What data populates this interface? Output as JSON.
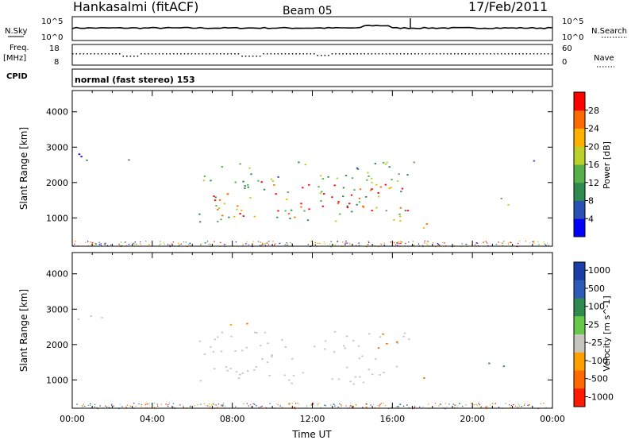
{
  "header": {
    "station": "Hankasalmi (fitACF)",
    "beam": "Beam 05",
    "date": "17/Feb/2011"
  },
  "top_strip": {
    "left_label": "N.Sky",
    "right_label": "N.Search",
    "left_ticks": [
      "10^5",
      "10^0"
    ],
    "right_ticks": [
      "10^5",
      "10^0"
    ]
  },
  "freq_strip": {
    "left_label": "Freq.",
    "left_unit": "[MHz]",
    "right_label": "Nave",
    "left_ticks": [
      "18",
      "8"
    ],
    "right_ticks": [
      "60",
      "0"
    ]
  },
  "cpid": {
    "label": "CPID",
    "value": "normal (fast stereo) 153"
  },
  "colors": {
    "power_scale": [
      "#0000ff",
      "#2a4fb5",
      "#2f8a4f",
      "#58b04b",
      "#bbd12a",
      "#ffb000",
      "#ff6a00",
      "#ff0000"
    ],
    "velocity_scale": [
      "#1b3fa6",
      "#2e5ab8",
      "#2f8a4f",
      "#66c94a",
      "#c6c6be",
      "#ffa000",
      "#ff6a00",
      "#ff1a00"
    ],
    "ground_scatter": "#c6c6be"
  },
  "chart_data": [
    {
      "type": "heatmap",
      "name": "power",
      "ylabel": "Slant Range [km]",
      "yticks": [
        1000,
        2000,
        3000,
        4000
      ],
      "ylim": [
        200,
        4600
      ],
      "xticks": [
        "00:00",
        "04:00",
        "08:00",
        "12:00",
        "16:00",
        "20:00",
        "00:00"
      ],
      "xlim_hours": [
        0,
        24
      ],
      "colorbar": {
        "label": "Power [dB]",
        "ticks": [
          "4",
          "8",
          "12",
          "16",
          "20",
          "24",
          "28"
        ],
        "range": [
          0,
          30
        ]
      },
      "regions": [
        {
          "t0": 6.3,
          "t1": 17.2,
          "r0": 900,
          "r1": 2600,
          "dB": 12
        },
        {
          "t0": 6.8,
          "t1": 16.8,
          "r0": 1000,
          "r1": 2100,
          "dB": 26
        },
        {
          "t0": 0.0,
          "t1": 1.5,
          "r0": 2600,
          "r1": 3100,
          "dB": 6
        },
        {
          "t0": 2.0,
          "t1": 3.3,
          "r0": 2600,
          "r1": 2700,
          "dB": 8
        },
        {
          "t0": 16.5,
          "t1": 18.0,
          "r0": 700,
          "r1": 1000,
          "dB": 20
        },
        {
          "t0": 20.3,
          "t1": 21.8,
          "r0": 1300,
          "r1": 1600,
          "dB": 12
        },
        {
          "t0": 23.0,
          "t1": 24.0,
          "r0": 2600,
          "r1": 2900,
          "dB": 6
        }
      ]
    },
    {
      "type": "heatmap",
      "name": "velocity",
      "ylabel": "Slant Range [km]",
      "yticks": [
        1000,
        2000,
        3000,
        4000
      ],
      "ylim": [
        200,
        4600
      ],
      "xticks": [
        "00:00",
        "04:00",
        "08:00",
        "12:00",
        "16:00",
        "20:00",
        "00:00"
      ],
      "xlim_hours": [
        0,
        24
      ],
      "xlabel": "Time UT",
      "colorbar": {
        "label": "Velocity [m s^-1]",
        "ticks": [
          "1000",
          "500",
          "100",
          "25",
          "-25",
          "-100",
          "-500",
          "-1000"
        ]
      },
      "regions": [
        {
          "t0": 6.2,
          "t1": 17.0,
          "r0": 900,
          "r1": 2400,
          "v": 0
        },
        {
          "t0": 7.0,
          "t1": 8.8,
          "r0": 2500,
          "r1": 2800,
          "v": -100
        },
        {
          "t0": 14.8,
          "t1": 16.5,
          "r0": 1900,
          "r1": 2400,
          "v": -300
        },
        {
          "t0": 16.3,
          "t1": 17.8,
          "r0": 1000,
          "r1": 1200,
          "v": -400
        },
        {
          "t0": 20.5,
          "t1": 21.8,
          "r0": 1300,
          "r1": 1600,
          "v": 150
        },
        {
          "t0": 0.0,
          "t1": 1.5,
          "r0": 2600,
          "r1": 3100,
          "v": 0
        }
      ]
    }
  ]
}
